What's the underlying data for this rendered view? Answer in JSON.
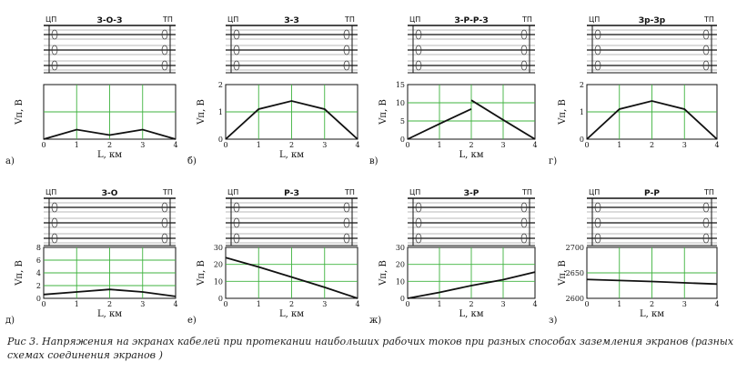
{
  "figure": {
    "caption_prefix": "Рис",
    "caption_num": "3.",
    "caption_text": "Напряжения на экранах кабелей при протекании наибольших рабочих токов при разных способах заземления экранов (разных схемах соединения экранов )",
    "cp_label": "ЦП",
    "tp_label": "ТП",
    "ylabel": "Vп, В",
    "xlabel": "L, км"
  },
  "chart_data": [
    {
      "panel": "а)",
      "scheme": "З-О-З",
      "type": "line",
      "title": "",
      "xlabel": "L, км",
      "ylabel": "Vп, В",
      "x": [
        0,
        1,
        2,
        3,
        4
      ],
      "y": [
        0,
        0.35,
        0.15,
        0.35,
        0
      ],
      "xlim": [
        0,
        4
      ],
      "ylim": [
        0,
        2
      ],
      "yticks": [],
      "xticks": [
        0,
        1,
        2,
        3,
        4
      ],
      "break": false,
      "grid": true
    },
    {
      "panel": "б)",
      "scheme": "З-З",
      "type": "line",
      "title": "",
      "xlabel": "L, км",
      "ylabel": "Vп, В",
      "x": [
        0,
        1,
        2,
        3,
        4
      ],
      "y": [
        0,
        1.1,
        1.4,
        1.1,
        0
      ],
      "xlim": [
        0,
        4
      ],
      "ylim": [
        0,
        2
      ],
      "yticks": [
        0,
        1,
        2
      ],
      "xticks": [
        0,
        1,
        2,
        3,
        4
      ],
      "break": false,
      "grid": true
    },
    {
      "panel": "в)",
      "scheme": "З-Р-Р-З",
      "type": "line",
      "title": "",
      "xlabel": "L, км",
      "ylabel": "Vп, В",
      "x": [
        0,
        1,
        2,
        2.001,
        3,
        4
      ],
      "y": [
        0,
        4.2,
        8.3,
        10.7,
        5.3,
        0
      ],
      "xlim": [
        0,
        4
      ],
      "ylim": [
        0,
        15
      ],
      "yticks": [
        0,
        5,
        10,
        15
      ],
      "xticks": [
        0,
        1,
        2,
        3,
        4
      ],
      "break": true,
      "grid": true
    },
    {
      "panel": "г)",
      "scheme": "Зр-Зр",
      "type": "line",
      "title": "",
      "xlabel": "",
      "ylabel": "Vп, В",
      "x": [
        0,
        1,
        2,
        3,
        4
      ],
      "y": [
        0,
        1.1,
        1.4,
        1.1,
        0
      ],
      "xlim": [
        0,
        4
      ],
      "ylim": [
        0,
        2
      ],
      "yticks": [
        0,
        1,
        2
      ],
      "xticks": [
        0,
        1,
        2,
        3,
        4
      ],
      "break": false,
      "grid": true
    },
    {
      "panel": "д)",
      "scheme": "З-О",
      "type": "line",
      "title": "",
      "xlabel": "L, км",
      "ylabel": "Vп, В",
      "x": [
        0,
        1,
        2,
        3,
        4
      ],
      "y": [
        0.6,
        1.0,
        1.4,
        1.0,
        0.3
      ],
      "xlim": [
        0,
        4
      ],
      "ylim": [
        0,
        8
      ],
      "yticks": [
        0,
        2,
        4,
        6,
        8
      ],
      "xticks": [
        0,
        1,
        2,
        3,
        4
      ],
      "break": false,
      "grid": true
    },
    {
      "panel": "е)",
      "scheme": "Р-З",
      "type": "line",
      "title": "",
      "xlabel": "L, км",
      "ylabel": "Vп, В",
      "x": [
        0,
        1,
        2,
        3,
        4
      ],
      "y": [
        24,
        18.5,
        12.5,
        6.5,
        0
      ],
      "xlim": [
        0,
        4
      ],
      "ylim": [
        0,
        30
      ],
      "yticks": [
        0,
        10,
        20,
        30
      ],
      "xticks": [
        0,
        1,
        2,
        3,
        4
      ],
      "break": false,
      "grid": true
    },
    {
      "panel": "ж)",
      "scheme": "З-Р",
      "type": "line",
      "title": "",
      "xlabel": "L, км",
      "ylabel": "Vп, В",
      "x": [
        0,
        1,
        2,
        3,
        4
      ],
      "y": [
        0,
        3.5,
        7.5,
        11,
        15.5
      ],
      "xlim": [
        0,
        4
      ],
      "ylim": [
        0,
        30
      ],
      "yticks": [
        0,
        10,
        20,
        30
      ],
      "xticks": [
        0,
        1,
        2,
        3,
        4
      ],
      "break": false,
      "grid": true
    },
    {
      "panel": "з)",
      "scheme": "Р-Р",
      "type": "line",
      "title": "",
      "xlabel": "L, км",
      "ylabel": "Vп, В",
      "x": [
        0,
        2,
        4
      ],
      "y": [
        2637,
        2633,
        2628
      ],
      "xlim": [
        0,
        4
      ],
      "ylim": [
        2600,
        2700
      ],
      "yticks": [
        2600,
        2650,
        2700
      ],
      "xticks": [
        0,
        1,
        2,
        3,
        4
      ],
      "break": false,
      "grid": true
    }
  ]
}
